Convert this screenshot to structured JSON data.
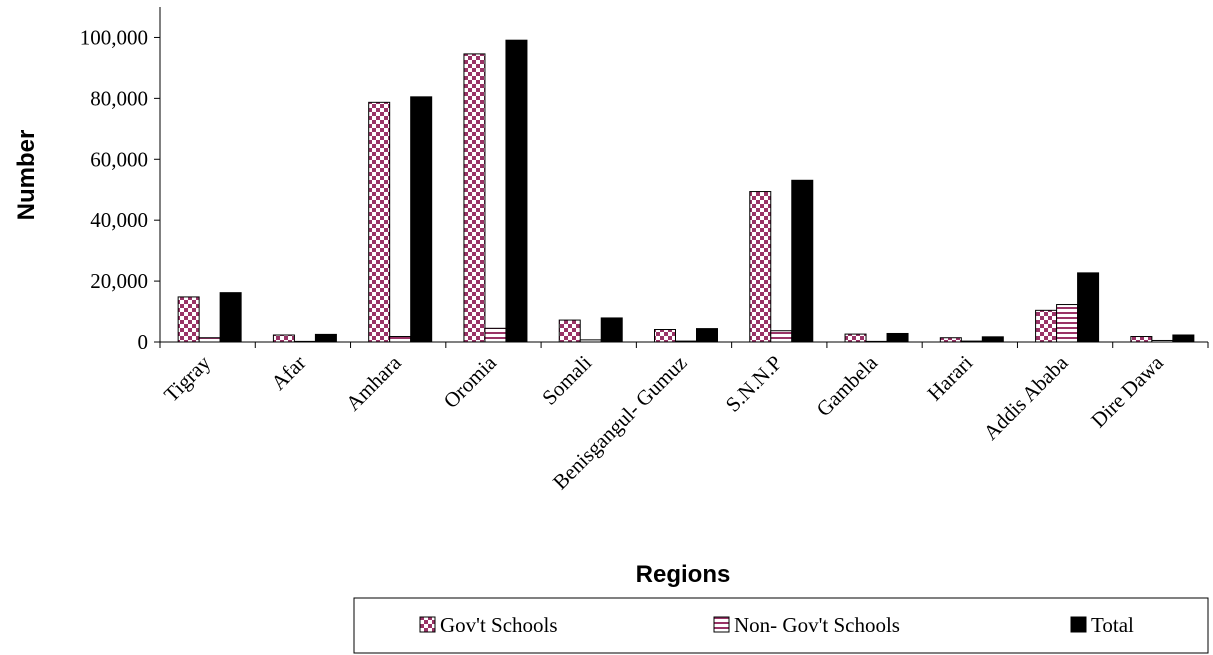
{
  "chart_data": {
    "type": "bar",
    "xlabel": "Regions",
    "ylabel": "Number",
    "ylim": [
      0,
      110000
    ],
    "yticks": [
      0,
      20000,
      40000,
      60000,
      80000,
      100000
    ],
    "ytick_labels": [
      "0",
      "20,000",
      "40,000",
      "60,000",
      "80,000",
      "100,000"
    ],
    "categories": [
      "Tigray",
      "Afar",
      "Amhara",
      "Oromia",
      "Somali",
      "Benisgangul- Gumuz",
      "S.N.N.P",
      "Gambela",
      "Harari",
      "Addis Ababa",
      "Dire Dawa"
    ],
    "series": [
      {
        "name": "Gov't Schools",
        "pattern": "checker",
        "color": "#993366",
        "values": [
          14800,
          2300,
          78700,
          94600,
          7200,
          4100,
          49400,
          2600,
          1400,
          10400,
          1800
        ]
      },
      {
        "name": "Non- Gov't Schools",
        "pattern": "hstripes",
        "color": "#993366",
        "values": [
          1400,
          200,
          1800,
          4500,
          700,
          300,
          3700,
          200,
          300,
          12300,
          500
        ]
      },
      {
        "name": "Total",
        "pattern": "solid",
        "color": "#000000",
        "values": [
          16200,
          2500,
          80500,
          99100,
          7900,
          4400,
          53100,
          2800,
          1700,
          22700,
          2300
        ]
      }
    ],
    "legend_position": "bottom",
    "grid": false
  }
}
